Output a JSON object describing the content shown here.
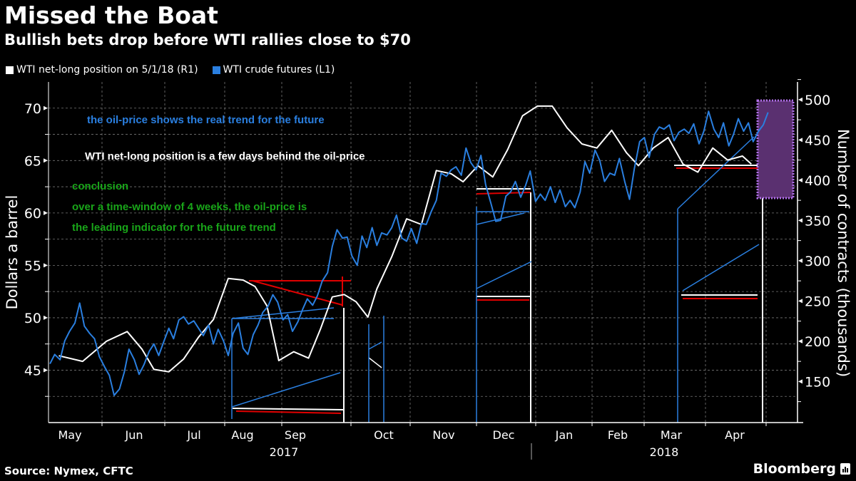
{
  "title": "Missed the Boat",
  "subtitle": "Bullish bets drop before WTI rallies close to $70",
  "source": "Source: Nymex, CFTC",
  "brand": "Bloomberg",
  "brand_icon": "bloomberg-chart-icon",
  "colors": {
    "background": "#000000",
    "net_long": "#ffffff",
    "crude": "#2a7fe0",
    "annotation_red": "#e00000",
    "annotation_green": "#19a519",
    "annotation_blue": "#2a7fe0",
    "highlight_box": "#5a3070",
    "highlight_border": "#b070e8"
  },
  "annotations": {
    "blue_note": "the oil-price shows the real trend for the future",
    "white_note": "WTI net-long position is a few days behind the oil-price",
    "green_heading": "conclusion",
    "green_line1": "over a time-window of 4 weeks, the oil-price is",
    "green_line2": "the leading indicator for the future trend"
  },
  "chart_data": {
    "type": "line",
    "title": "Missed the Boat",
    "subtitle": "Bullish bets drop before WTI rallies close to $70",
    "xlabel": "",
    "ylabel_left": "Dollars a barrel",
    "ylabel_right": "Number of contracts (thousands)",
    "ylim_left": [
      40,
      72.5
    ],
    "ylim_right": [
      99,
      522
    ],
    "yticks_left": [
      "70",
      "65",
      "60",
      "55",
      "50",
      "45"
    ],
    "yticks_left_values": [
      70,
      65,
      60,
      55,
      50,
      45
    ],
    "yticks_right": [
      "500",
      "450",
      "400",
      "350",
      "300",
      "250",
      "200",
      "150"
    ],
    "yticks_right_values": [
      500,
      450,
      400,
      350,
      300,
      250,
      200,
      150
    ],
    "xticks": [
      "May",
      "Jun",
      "Jul",
      "Aug",
      "Sep",
      "Oct",
      "Nov",
      "Dec",
      "Jan",
      "Feb",
      "Mar",
      "Apr"
    ],
    "year_labels": [
      "2017",
      "2018"
    ],
    "grid": true,
    "legend": {
      "placement": "top-left",
      "entries": [
        "WTI net-long position on 5/1/18 (R1)",
        "WTI crude futures (L1)"
      ]
    },
    "x_range_months": [
      0,
      12.6
    ],
    "series": [
      {
        "name": "WTI net-long position on 5/1/18 (R1)",
        "axis": "right",
        "x": [
          0.15,
          0.55,
          0.95,
          1.3,
          1.55,
          1.75,
          2.0,
          2.25,
          2.5,
          2.75,
          3.0,
          3.25,
          3.45,
          3.65,
          3.85,
          4.1,
          4.35,
          4.55,
          4.75,
          4.95,
          5.15,
          5.35,
          5.5,
          5.75,
          6.0,
          6.25,
          6.5,
          6.75,
          6.95,
          7.2,
          7.45,
          7.7,
          7.95,
          8.2,
          8.45,
          8.7,
          8.95,
          9.2,
          9.45,
          9.7,
          9.9,
          10.15,
          10.4,
          10.65,
          10.9,
          11.15,
          11.4,
          11.65,
          11.8
        ],
        "values": [
          182,
          175,
          200,
          212,
          190,
          165,
          162,
          178,
          205,
          227,
          278,
          276,
          268,
          244,
          176,
          187,
          179,
          215,
          255,
          258,
          249,
          230,
          265,
          305,
          352,
          345,
          412,
          408,
          398,
          418,
          404,
          438,
          480,
          492,
          492,
          465,
          445,
          440,
          462,
          434,
          418,
          440,
          453,
          420,
          410,
          440,
          425,
          430,
          420
        ]
      },
      {
        "name": "WTI crude futures (L1)",
        "axis": "left",
        "x": [
          0.0,
          0.08,
          0.17,
          0.25,
          0.33,
          0.42,
          0.5,
          0.58,
          0.67,
          0.75,
          0.83,
          0.92,
          1.0,
          1.08,
          1.17,
          1.25,
          1.33,
          1.42,
          1.5,
          1.58,
          1.67,
          1.75,
          1.83,
          1.92,
          2.0,
          2.08,
          2.17,
          2.25,
          2.33,
          2.42,
          2.5,
          2.58,
          2.67,
          2.75,
          2.83,
          2.92,
          3.0,
          3.08,
          3.17,
          3.25,
          3.33,
          3.42,
          3.5,
          3.58,
          3.67,
          3.75,
          3.83,
          3.92,
          4.0,
          4.08,
          4.17,
          4.25,
          4.33,
          4.42,
          4.5,
          4.58,
          4.67,
          4.75,
          4.83,
          4.92,
          5.0,
          5.08,
          5.17,
          5.25,
          5.33,
          5.42,
          5.5,
          5.58,
          5.67,
          5.75,
          5.83,
          5.92,
          6.0,
          6.08,
          6.17,
          6.25,
          6.33,
          6.42,
          6.5,
          6.58,
          6.67,
          6.75,
          6.83,
          6.92,
          7.0,
          7.08,
          7.17,
          7.25,
          7.33,
          7.42,
          7.5,
          7.58,
          7.67,
          7.75,
          7.83,
          7.92,
          8.0,
          8.08,
          8.17,
          8.25,
          8.33,
          8.42,
          8.5,
          8.58,
          8.67,
          8.75,
          8.83,
          8.92,
          9.0,
          9.08,
          9.17,
          9.25,
          9.33,
          9.42,
          9.5,
          9.58,
          9.67,
          9.75,
          9.83,
          9.92,
          10.0,
          10.08,
          10.17,
          10.25,
          10.33,
          10.42,
          10.5,
          10.58,
          10.67,
          10.75,
          10.83,
          10.92,
          11.0,
          11.08,
          11.17,
          11.25,
          11.33,
          11.42,
          11.5,
          11.58,
          11.67,
          11.75,
          11.83,
          11.92,
          12.0,
          12.08
        ],
        "values": [
          45.6,
          46.5,
          46.0,
          47.8,
          48.7,
          49.5,
          51.4,
          49.2,
          48.5,
          48.0,
          46.3,
          45.3,
          44.5,
          42.6,
          43.2,
          44.8,
          47.0,
          46.0,
          44.6,
          45.5,
          46.8,
          47.5,
          46.4,
          47.8,
          49.0,
          48.0,
          49.8,
          50.1,
          49.4,
          49.7,
          49.0,
          48.3,
          49.3,
          47.5,
          48.9,
          47.8,
          46.4,
          48.5,
          49.5,
          47.1,
          46.5,
          48.4,
          49.3,
          50.5,
          51.1,
          52.2,
          51.5,
          49.8,
          50.3,
          48.7,
          49.6,
          50.8,
          51.8,
          51.2,
          52.1,
          53.5,
          54.3,
          56.8,
          58.4,
          57.6,
          57.7,
          55.9,
          55.0,
          57.8,
          56.7,
          58.6,
          56.9,
          58.1,
          57.9,
          58.6,
          59.8,
          57.6,
          57.3,
          58.5,
          57.1,
          59.0,
          58.9,
          60.2,
          61.2,
          63.8,
          63.5,
          64.1,
          64.4,
          63.6,
          66.2,
          64.8,
          64.1,
          65.5,
          62.7,
          60.9,
          59.2,
          59.3,
          61.6,
          62.0,
          63.0,
          61.5,
          62.6,
          64.0,
          61.1,
          61.8,
          61.2,
          62.5,
          61.0,
          62.2,
          60.6,
          61.2,
          60.5,
          62.0,
          64.9,
          63.8,
          66.0,
          65.0,
          63.0,
          63.8,
          63.6,
          65.2,
          63.0,
          61.3,
          64.2,
          66.8,
          67.2,
          65.3,
          67.5,
          68.2,
          68.0,
          68.4,
          66.9,
          67.7,
          68.0,
          67.6,
          68.5,
          66.6,
          67.8,
          69.7,
          68.0,
          67.2,
          68.6,
          66.4,
          67.5,
          69.0,
          67.8,
          68.6,
          66.8,
          67.8,
          68.4,
          69.6
        ]
      }
    ]
  }
}
